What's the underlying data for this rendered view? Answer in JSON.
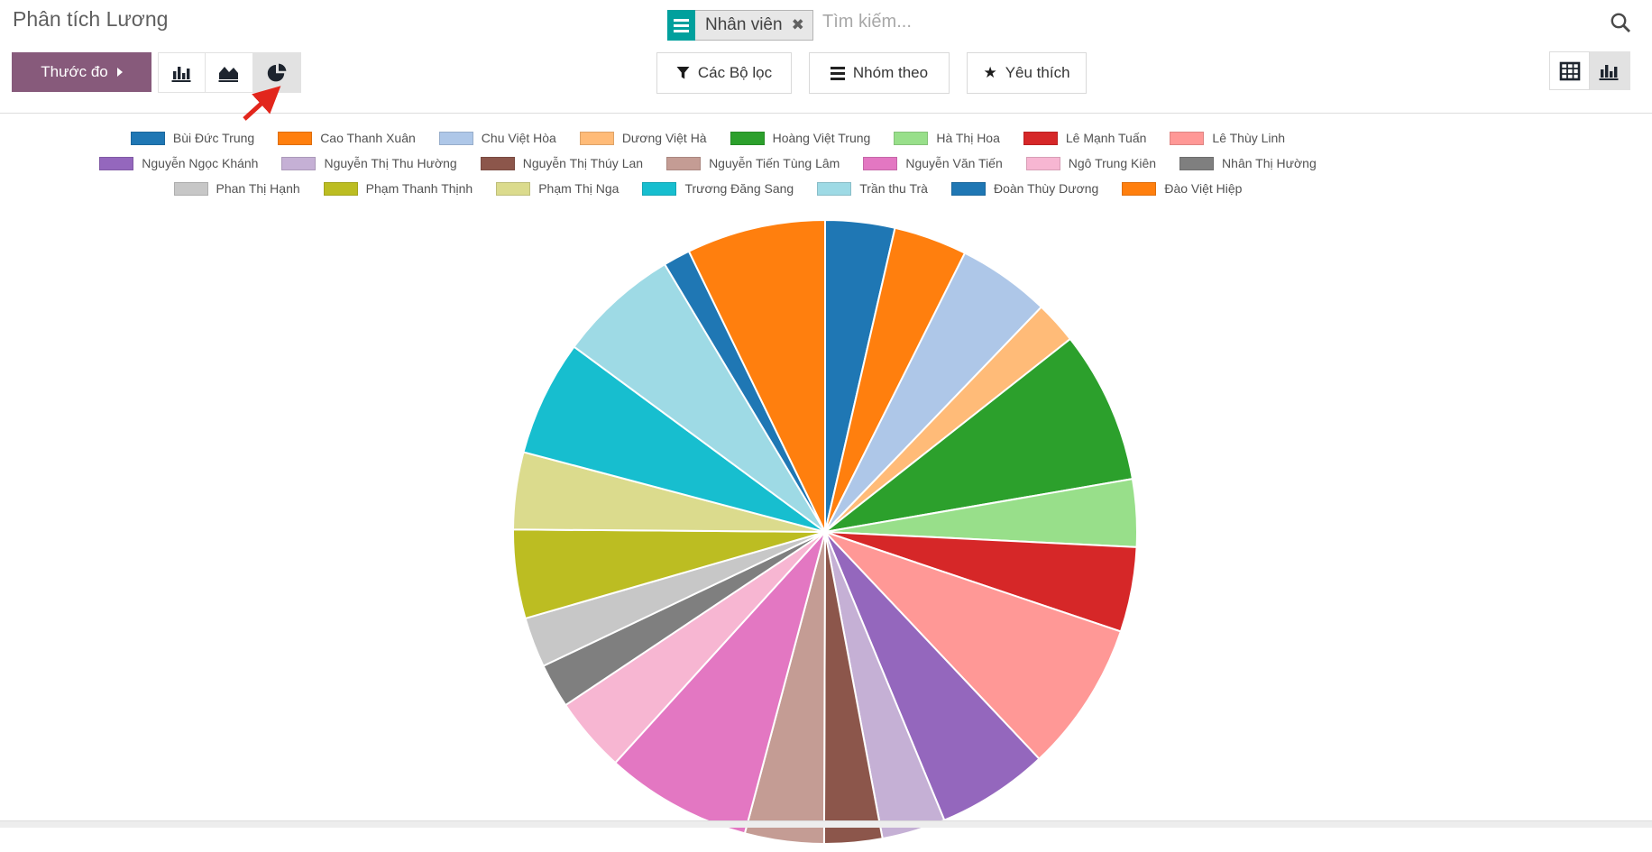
{
  "header": {
    "title": "Phân tích Lương",
    "measures_button": "Thước đo",
    "filters_button": "Các Bộ lọc",
    "groupby_button": "Nhóm theo",
    "favorites_button": "Yêu thích",
    "search": {
      "facet_label": "Nhân viên",
      "facet_close": "✖",
      "facet_icon": "list-icon",
      "placeholder": "Tìm kiếm...",
      "search_icon": "search-icon"
    },
    "chart_type_buttons": [
      "bar-chart-icon",
      "area-chart-icon",
      "pie-chart-icon"
    ],
    "active_chart_type": "pie",
    "view_switcher": [
      "pivot-view-icon",
      "graph-view-icon"
    ],
    "active_view": "graph"
  },
  "annotation": {
    "type": "arrow",
    "color": "#e2261c",
    "points_to": "pie-chart-button"
  },
  "colors": {
    "primary_button": "#875a7b",
    "facet_icon_bg": "#00a09d",
    "active_toggle_bg": "#e2e2e2"
  },
  "chart_data": {
    "type": "pie",
    "title": "",
    "legend_position": "top",
    "legend_rows": [
      8,
      7,
      7
    ],
    "start_angle_deg": 0,
    "direction": "clockwise",
    "slices": [
      {
        "label": "Bùi Đức Trung",
        "color": "#1f77b4",
        "value_pct": 3.6
      },
      {
        "label": "Cao Thanh Xuân",
        "color": "#ff7f0e",
        "value_pct": 3.8
      },
      {
        "label": "Chu Việt Hòa",
        "color": "#aec7e8",
        "value_pct": 4.8
      },
      {
        "label": "Dương Việt Hà",
        "color": "#ffbb78",
        "value_pct": 2.2
      },
      {
        "label": "Hoàng Việt Trung",
        "color": "#2ca02c",
        "value_pct": 7.9
      },
      {
        "label": "Hà Thị Hoa",
        "color": "#98df8a",
        "value_pct": 3.5
      },
      {
        "label": "Lê Mạnh Tuấn",
        "color": "#d62728",
        "value_pct": 4.4
      },
      {
        "label": "Lê Thùy Linh",
        "color": "#ff9896",
        "value_pct": 7.8
      },
      {
        "label": "Nguyễn Ngọc Khánh",
        "color": "#9467bd",
        "value_pct": 5.8
      },
      {
        "label": "Nguyễn Thị Thu Hường",
        "color": "#c5b0d5",
        "value_pct": 3.3
      },
      {
        "label": "Nguyễn Thị Thúy Lan",
        "color": "#8c564b",
        "value_pct": 3.0
      },
      {
        "label": "Nguyễn Tiến Tùng Lâm",
        "color": "#c49c94",
        "value_pct": 4.1
      },
      {
        "label": "Nguyễn Văn Tiến",
        "color": "#e377c2",
        "value_pct": 7.6
      },
      {
        "label": "Ngô Trung Kiên",
        "color": "#f7b6d2",
        "value_pct": 3.9
      },
      {
        "label": "Nhân Thị Hường",
        "color": "#7f7f7f",
        "value_pct": 2.3
      },
      {
        "label": "Phan Thị Hạnh",
        "color": "#c7c7c7",
        "value_pct": 2.6
      },
      {
        "label": "Phạm Thanh Thịnh",
        "color": "#bcbd22",
        "value_pct": 4.6
      },
      {
        "label": "Phạm Thị Nga",
        "color": "#dbdb8d",
        "value_pct": 4.0
      },
      {
        "label": "Trương Đăng Sang",
        "color": "#17becf",
        "value_pct": 6.0
      },
      {
        "label": "Trần thu Trà",
        "color": "#9edae5",
        "value_pct": 6.3
      },
      {
        "label": "Đoàn Thùy Dương",
        "color": "#1f77b4",
        "value_pct": 1.4
      },
      {
        "label": "Đào Việt Hiệp",
        "color": "#ff7f0e",
        "value_pct": 7.2
      }
    ]
  }
}
